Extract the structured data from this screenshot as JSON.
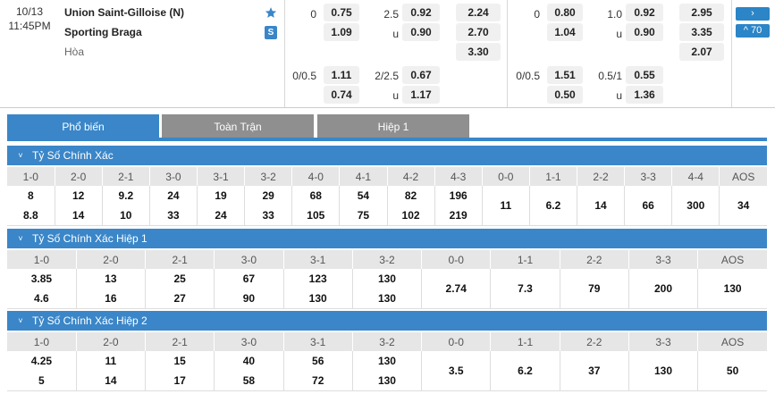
{
  "match": {
    "date": "10/13",
    "time": "11:45PM",
    "home": "Union Saint-Gilloise (N)",
    "away": "Sporting Braga",
    "draw": "Hòa",
    "star_icon": "star-icon",
    "s_badge": "S"
  },
  "fulltime": {
    "hdp_line1": "0",
    "hdp_home": "0.75",
    "hdp_away": "1.09",
    "ou_line": "2.5",
    "ou_over": "0.92",
    "ou_under_label": "u",
    "ou_under": "0.90",
    "x12_home": "2.24",
    "x12_away": "2.70",
    "x12_draw": "3.30",
    "hdp2_line": "0/0.5",
    "hdp2_home": "1.11",
    "hdp2_away": "0.74",
    "ou2_line": "2/2.5",
    "ou2_over": "0.67",
    "ou2_under_label": "u",
    "ou2_under": "1.17"
  },
  "firsthalf": {
    "hdp_line1": "0",
    "hdp_home": "0.80",
    "hdp_away": "1.04",
    "ou_line": "1.0",
    "ou_over": "0.92",
    "ou_under_label": "u",
    "ou_under": "0.90",
    "x12_home": "2.95",
    "x12_away": "3.35",
    "x12_draw": "2.07",
    "hdp2_line": "0/0.5",
    "hdp2_home": "1.51",
    "hdp2_away": "0.50",
    "ou2_line": "0.5/1",
    "ou2_over": "0.55",
    "ou2_under_label": "u",
    "ou2_under": "1.36"
  },
  "side_buttons": {
    "arrow": "›",
    "more": "^ 70"
  },
  "tabs": [
    "Phổ biến",
    "Toàn Trận",
    "Hiệp 1"
  ],
  "sections": [
    {
      "title": "Tỷ Số Chính Xác",
      "chevron": "˅",
      "headers": [
        "1-0",
        "2-0",
        "2-1",
        "3-0",
        "3-1",
        "3-2",
        "4-0",
        "4-1",
        "4-2",
        "4-3",
        "0-0",
        "1-1",
        "2-2",
        "3-3",
        "4-4",
        "AOS"
      ],
      "home_row": [
        "8",
        "12",
        "9.2",
        "24",
        "19",
        "29",
        "68",
        "54",
        "82",
        "196"
      ],
      "away_row": [
        "8.8",
        "14",
        "10",
        "33",
        "24",
        "33",
        "105",
        "75",
        "102",
        "219"
      ],
      "single": [
        "11",
        "6.2",
        "14",
        "66",
        "300",
        "34"
      ]
    },
    {
      "title": "Tỷ Số Chính Xác Hiệp 1",
      "chevron": "˅",
      "headers": [
        "1-0",
        "2-0",
        "2-1",
        "3-0",
        "3-1",
        "3-2",
        "0-0",
        "1-1",
        "2-2",
        "3-3",
        "AOS"
      ],
      "home_row": [
        "3.85",
        "13",
        "25",
        "67",
        "123",
        "130"
      ],
      "away_row": [
        "4.6",
        "16",
        "27",
        "90",
        "130",
        "130"
      ],
      "single": [
        "2.74",
        "7.3",
        "79",
        "200",
        "130"
      ]
    },
    {
      "title": "Tỷ Số Chính Xác Hiệp 2",
      "chevron": "˅",
      "headers": [
        "1-0",
        "2-0",
        "2-1",
        "3-0",
        "3-1",
        "3-2",
        "0-0",
        "1-1",
        "2-2",
        "3-3",
        "AOS"
      ],
      "home_row": [
        "4.25",
        "11",
        "15",
        "40",
        "56",
        "130"
      ],
      "away_row": [
        "5",
        "14",
        "17",
        "58",
        "72",
        "130"
      ],
      "single": [
        "3.5",
        "6.2",
        "37",
        "130",
        "50"
      ]
    }
  ],
  "colors": {
    "accent": "#3a86c8",
    "tab_inactive": "#8f8f8f",
    "header_bg": "#e6e6e6"
  }
}
